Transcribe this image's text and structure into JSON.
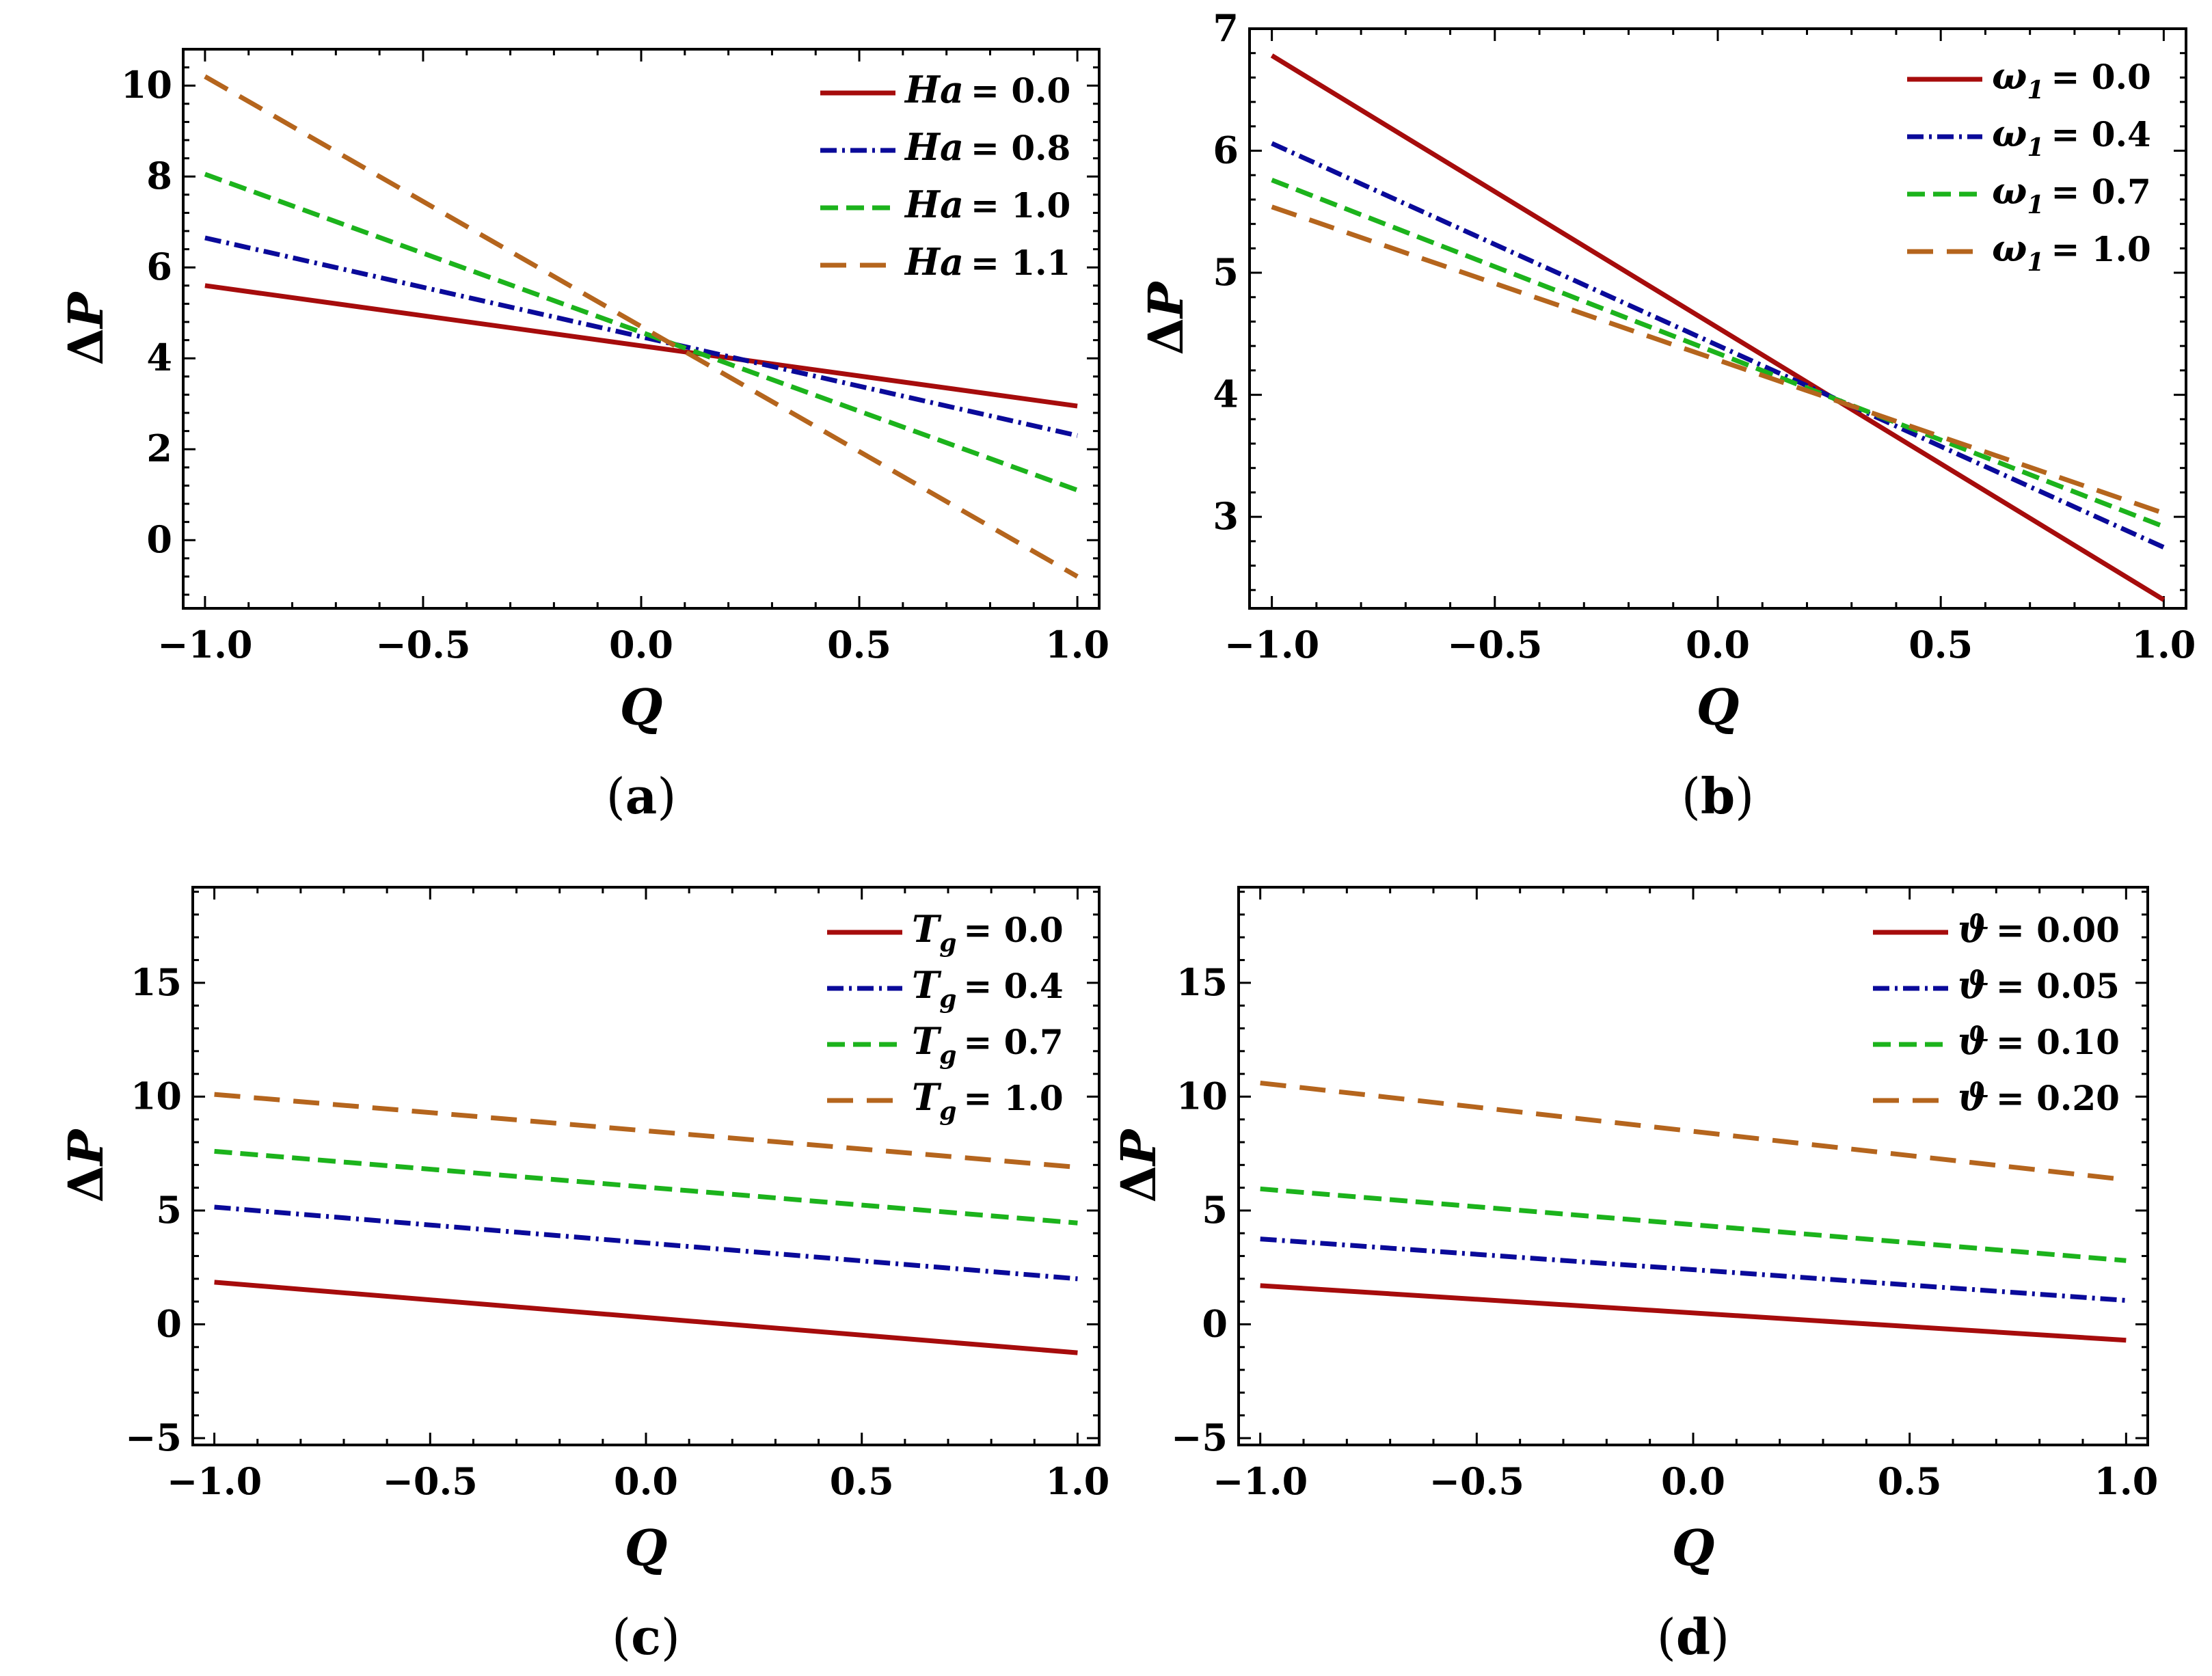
{
  "chart_data": [
    {
      "type": "line",
      "caption": "(a)",
      "xlabel": "Q",
      "ylabel": "ΔP",
      "xlim": [
        -1.05,
        1.05
      ],
      "ylim": [
        -1.5,
        10.8
      ],
      "xticks": [
        -1.0,
        -0.5,
        0.0,
        0.5,
        1.0
      ],
      "xtick_labels": [
        "−1.0",
        "−0.5",
        "0.0",
        "0.5",
        "1.0"
      ],
      "yticks": [
        0,
        2,
        4,
        6,
        8,
        10
      ],
      "ytick_labels": [
        "0",
        "2",
        "4",
        "6",
        "8",
        "10"
      ],
      "legend_position": "top-right",
      "series": [
        {
          "name": "Ha = 0.0",
          "legend_symbol": "Ha",
          "legend_sub": "",
          "legend_value": "= 0.0",
          "style": "solid",
          "color": "#a60c0c",
          "x": [
            -1.0,
            1.0
          ],
          "values": [
            5.6,
            2.95
          ]
        },
        {
          "name": "Ha = 0.8",
          "legend_symbol": "Ha",
          "legend_sub": "",
          "legend_value": "= 0.8",
          "style": "dashdot",
          "color": "#0a0a9a",
          "x": [
            -1.0,
            1.0
          ],
          "values": [
            6.65,
            2.3
          ]
        },
        {
          "name": "Ha = 1.0",
          "legend_symbol": "Ha",
          "legend_sub": "",
          "legend_value": "= 1.0",
          "style": "dashed",
          "color": "#1cb31c",
          "x": [
            -1.0,
            1.0
          ],
          "values": [
            8.05,
            1.1
          ]
        },
        {
          "name": "Ha = 1.1",
          "legend_symbol": "Ha",
          "legend_sub": "",
          "legend_value": "= 1.1",
          "style": "longdash",
          "color": "#b5651d",
          "x": [
            -1.0,
            1.0
          ],
          "values": [
            10.2,
            -0.8
          ]
        }
      ]
    },
    {
      "type": "line",
      "caption": "(b)",
      "xlabel": "Q",
      "ylabel": "ΔP",
      "xlim": [
        -1.05,
        1.05
      ],
      "ylim": [
        2.25,
        7.0
      ],
      "xticks": [
        -1.0,
        -0.5,
        0.0,
        0.5,
        1.0
      ],
      "xtick_labels": [
        "−1.0",
        "−0.5",
        "0.0",
        "0.5",
        "1.0"
      ],
      "yticks": [
        3,
        4,
        5,
        6,
        7
      ],
      "ytick_labels": [
        "3",
        "4",
        "5",
        "6",
        "7"
      ],
      "legend_position": "top-right",
      "series": [
        {
          "name": "ω1 = 0.0",
          "legend_symbol": "ω",
          "legend_sub": "1",
          "legend_value": "= 0.0",
          "style": "solid",
          "color": "#a60c0c",
          "x": [
            -1.0,
            1.0
          ],
          "values": [
            6.78,
            2.32
          ]
        },
        {
          "name": "ω1 = 0.4",
          "legend_symbol": "ω",
          "legend_sub": "1",
          "legend_value": "= 0.4",
          "style": "dashdot",
          "color": "#0a0a9a",
          "x": [
            -1.0,
            1.0
          ],
          "values": [
            6.06,
            2.75
          ]
        },
        {
          "name": "ω1 = 0.7",
          "legend_symbol": "ω",
          "legend_sub": "1",
          "legend_value": "= 0.7",
          "style": "dashed",
          "color": "#1cb31c",
          "x": [
            -1.0,
            1.0
          ],
          "values": [
            5.76,
            2.92
          ]
        },
        {
          "name": "ω1 = 1.0",
          "legend_symbol": "ω",
          "legend_sub": "1",
          "legend_value": "= 1.0",
          "style": "longdash",
          "color": "#b5651d",
          "x": [
            -1.0,
            1.0
          ],
          "values": [
            5.54,
            3.03
          ]
        }
      ]
    },
    {
      "type": "line",
      "caption": "(c)",
      "xlabel": "Q",
      "ylabel": "ΔP",
      "xlim": [
        -1.05,
        1.05
      ],
      "ylim": [
        -5.3,
        19.2
      ],
      "xticks": [
        -1.0,
        -0.5,
        0.0,
        0.5,
        1.0
      ],
      "xtick_labels": [
        "−1.0",
        "−0.5",
        "0.0",
        "0.5",
        "1.0"
      ],
      "yticks": [
        -5,
        0,
        5,
        10,
        15
      ],
      "ytick_labels": [
        "−5",
        "0",
        "5",
        "10",
        "15"
      ],
      "legend_position": "top-right",
      "series": [
        {
          "name": "Tg = 0.0",
          "legend_symbol": "T",
          "legend_sub": "g",
          "legend_value": "= 0.0",
          "style": "solid",
          "color": "#a60c0c",
          "x": [
            -1.0,
            1.0
          ],
          "values": [
            1.85,
            -1.25
          ]
        },
        {
          "name": "Tg = 0.4",
          "legend_symbol": "T",
          "legend_sub": "g",
          "legend_value": "= 0.4",
          "style": "dashdot",
          "color": "#0a0a9a",
          "x": [
            -1.0,
            1.0
          ],
          "values": [
            5.15,
            2.0
          ]
        },
        {
          "name": "Tg = 0.7",
          "legend_symbol": "T",
          "legend_sub": "g",
          "legend_value": "= 0.7",
          "style": "dashed",
          "color": "#1cb31c",
          "x": [
            -1.0,
            1.0
          ],
          "values": [
            7.6,
            4.45
          ]
        },
        {
          "name": "Tg = 1.0",
          "legend_symbol": "T",
          "legend_sub": "g",
          "legend_value": "= 1.0",
          "style": "longdash",
          "color": "#b5651d",
          "x": [
            -1.0,
            1.0
          ],
          "values": [
            10.1,
            6.9
          ]
        }
      ]
    },
    {
      "type": "line",
      "caption": "(d)",
      "xlabel": "Q",
      "ylabel": "ΔP",
      "xlim": [
        -1.05,
        1.05
      ],
      "ylim": [
        -5.3,
        19.2
      ],
      "xticks": [
        -1.0,
        -0.5,
        0.0,
        0.5,
        1.0
      ],
      "xtick_labels": [
        "−1.0",
        "−0.5",
        "0.0",
        "0.5",
        "1.0"
      ],
      "yticks": [
        -5,
        0,
        5,
        10,
        15
      ],
      "ytick_labels": [
        "−5",
        "0",
        "5",
        "10",
        "15"
      ],
      "legend_position": "top-right",
      "series": [
        {
          "name": "ϑ = 0.00",
          "legend_symbol": "ϑ",
          "legend_sub": "",
          "legend_value": "= 0.00",
          "style": "solid",
          "color": "#a60c0c",
          "x": [
            -1.0,
            1.0
          ],
          "values": [
            1.7,
            -0.7
          ]
        },
        {
          "name": "ϑ = 0.05",
          "legend_symbol": "ϑ",
          "legend_sub": "",
          "legend_value": "= 0.05",
          "style": "dashdot",
          "color": "#0a0a9a",
          "x": [
            -1.0,
            1.0
          ],
          "values": [
            3.75,
            1.05
          ]
        },
        {
          "name": "ϑ = 0.10",
          "legend_symbol": "ϑ",
          "legend_sub": "",
          "legend_value": "= 0.10",
          "style": "dashed",
          "color": "#1cb31c",
          "x": [
            -1.0,
            1.0
          ],
          "values": [
            5.95,
            2.8
          ]
        },
        {
          "name": "ϑ = 0.20",
          "legend_symbol": "ϑ",
          "legend_sub": "",
          "legend_value": "= 0.20",
          "style": "longdash",
          "color": "#b5651d",
          "x": [
            -1.0,
            1.0
          ],
          "values": [
            10.6,
            6.35
          ]
        }
      ]
    }
  ]
}
